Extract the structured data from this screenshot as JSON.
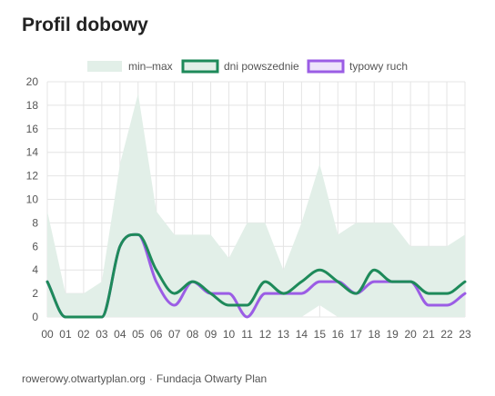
{
  "title": "Profil dobowy",
  "footer": {
    "source": "rowerowy.otwartyplan.org",
    "separator": "·",
    "org": "Fundacja Otwarty Plan"
  },
  "chart_data": {
    "type": "line",
    "title": "Profil dobowy",
    "x": [
      "00",
      "01",
      "02",
      "03",
      "04",
      "05",
      "06",
      "07",
      "08",
      "09",
      "10",
      "11",
      "12",
      "13",
      "14",
      "15",
      "16",
      "17",
      "18",
      "19",
      "20",
      "21",
      "22",
      "23"
    ],
    "ylim": [
      0,
      20
    ],
    "yticks": [
      0,
      2,
      4,
      6,
      8,
      10,
      12,
      14,
      16,
      18,
      20
    ],
    "grid": true,
    "legend_position": "top-center",
    "band": {
      "name": "min–max",
      "color": "#e2efe8",
      "min": [
        0,
        0,
        0,
        0,
        0,
        0,
        0,
        0,
        0,
        0,
        0,
        0,
        0,
        0,
        0,
        1,
        0,
        0,
        0,
        0,
        0,
        0,
        0,
        0
      ],
      "max": [
        9,
        2,
        2,
        3,
        13,
        19,
        9,
        7,
        7,
        7,
        5,
        8,
        8,
        4,
        8,
        13,
        7,
        8,
        8,
        8,
        6,
        6,
        6,
        7
      ]
    },
    "series": [
      {
        "name": "dni powszednie",
        "color": "#1e8a5a",
        "fill": "#e2efe8",
        "values": [
          3,
          0,
          0,
          0,
          6,
          7,
          4,
          2,
          3,
          2,
          1,
          1,
          3,
          2,
          3,
          4,
          3,
          2,
          4,
          3,
          3,
          2,
          2,
          3
        ]
      },
      {
        "name": "typowy ruch",
        "color": "#9b5de5",
        "fill": "#eee3fb",
        "values": [
          3,
          0,
          0,
          0,
          6,
          7,
          3,
          1,
          3,
          2,
          2,
          0,
          2,
          2,
          2,
          3,
          3,
          2,
          3,
          3,
          3,
          1,
          1,
          2
        ]
      }
    ]
  }
}
